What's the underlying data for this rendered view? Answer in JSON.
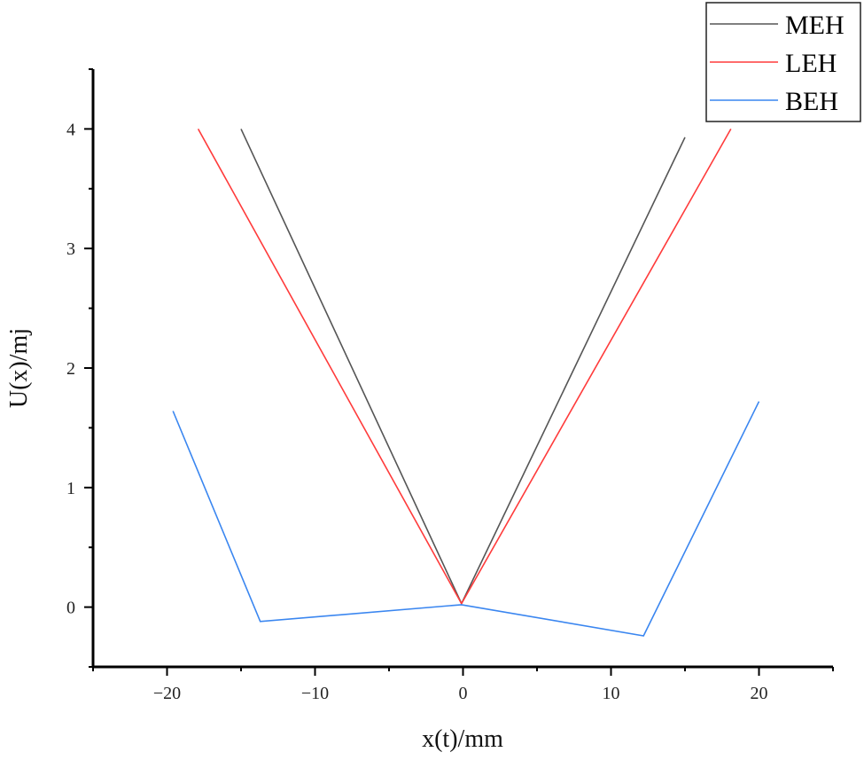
{
  "chart_data": {
    "type": "line",
    "title": "",
    "xlabel": "x(t)/mm",
    "ylabel": "U(x)/mj",
    "xlim": [
      -25,
      25
    ],
    "ylim": [
      -0.5,
      4.5
    ],
    "xticks": [
      -20,
      -10,
      0,
      10,
      20
    ],
    "xtick_labels": [
      "−20",
      "−10",
      "0",
      "10",
      "20"
    ],
    "yticks": [
      0,
      1,
      2,
      3,
      4
    ],
    "ytick_labels": [
      "0",
      "1",
      "2",
      "3",
      "4"
    ],
    "grid": false,
    "legend_placement": "top-right",
    "series": [
      {
        "name": "MEH",
        "color": "#555555",
        "x": [
          -15,
          -0.1,
          15
        ],
        "y": [
          4.0,
          0.03,
          3.93
        ]
      },
      {
        "name": "LEH",
        "color": "#ff3b3b",
        "x": [
          -17.9,
          -0.1,
          18.1
        ],
        "y": [
          4.0,
          0.03,
          4.0
        ]
      },
      {
        "name": "BEH",
        "color": "#3a86f0",
        "x": [
          -19.6,
          -13.7,
          -0.1,
          12.2,
          20.0
        ],
        "y": [
          1.64,
          -0.12,
          0.02,
          -0.24,
          1.72
        ]
      }
    ]
  }
}
